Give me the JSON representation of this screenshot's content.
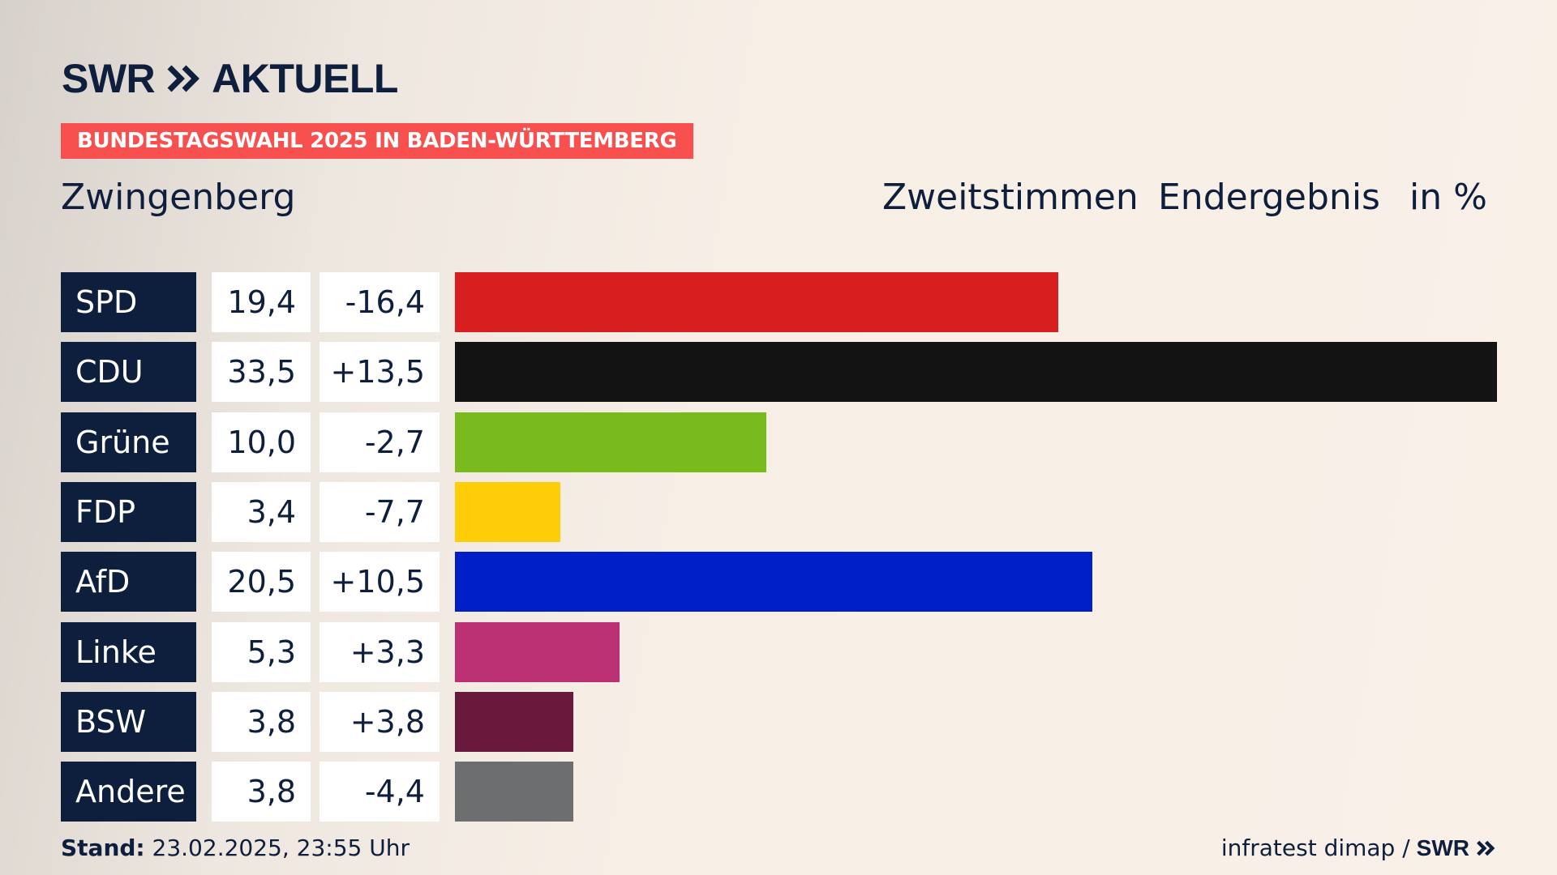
{
  "brand": {
    "logo_left": "SWR",
    "logo_right": "AKTUELL",
    "banner": "BUNDESTAGSWAHL 2025 IN BADEN-WÜRTTEMBERG"
  },
  "header": {
    "location": "Zwingenberg",
    "vote_type": "Zweitstimmen",
    "status": "Endergebnis",
    "unit": "in %"
  },
  "chart_data": {
    "type": "bar",
    "orientation": "horizontal",
    "categories": [
      "SPD",
      "CDU",
      "Grüne",
      "FDP",
      "AfD",
      "Linke",
      "BSW",
      "Andere"
    ],
    "values": [
      19.4,
      33.5,
      10.0,
      3.4,
      20.5,
      5.3,
      3.8,
      3.8
    ],
    "value_labels": [
      "19,4",
      "33,5",
      "10,0",
      "3,4",
      "20,5",
      "5,3",
      "3,8",
      "3,8"
    ],
    "diff_labels": [
      "-16,4",
      "+13,5",
      "-2,7",
      "-7,7",
      "+10,5",
      "+3,3",
      "+3,8",
      "-4,4"
    ],
    "colors": [
      "#d71f1f",
      "#131313",
      "#79bb1d",
      "#ffcc0a",
      "#001fc8",
      "#bb3174",
      "#69193c",
      "#6d6e70"
    ]
  },
  "footer": {
    "stand_label": "Stand:",
    "stand_value": "23.02.2025, 23:55 Uhr",
    "source": "infratest dimap /",
    "source_logo": "SWR"
  }
}
